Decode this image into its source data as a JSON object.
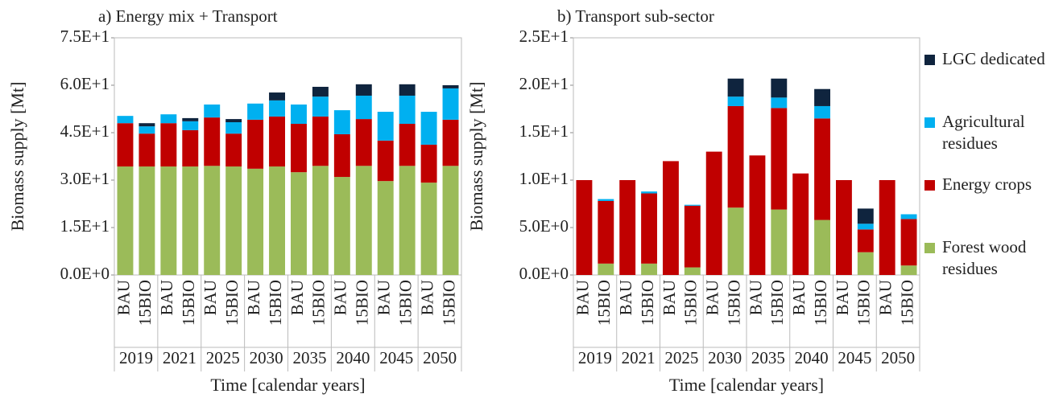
{
  "chart_data": [
    {
      "type": "bar",
      "stacked": true,
      "title": "a) Energy mix + Transport",
      "y_label": "Biomass supply  [Mt]",
      "x_label": "Time [calendar years]",
      "categories": [
        "BAU",
        "15BIO",
        "BAU",
        "15BIO",
        "BAU",
        "15BIO",
        "BAU",
        "15BIO",
        "BAU",
        "15BIO",
        "BAU",
        "15BIO",
        "BAU",
        "15BIO",
        "BAU",
        "15BIO"
      ],
      "groups": [
        "2019",
        "2021",
        "2025",
        "2030",
        "2035",
        "2040",
        "2045",
        "2050"
      ],
      "ylim": [
        0,
        75
      ],
      "yticks": [
        {
          "value": 0,
          "label": "0.0E+0"
        },
        {
          "value": 15,
          "label": "1.5E+1"
        },
        {
          "value": 30,
          "label": "3.0E+1"
        },
        {
          "value": 45,
          "label": "4.5E+1"
        },
        {
          "value": 60,
          "label": "6.0E+1"
        },
        {
          "value": 75,
          "label": "7.5E+1"
        }
      ],
      "series": [
        {
          "color": "#9bbb59",
          "values": [
            34.3,
            34.3,
            34.3,
            34.3,
            34.5,
            34.3,
            33.6,
            34.3,
            32.5,
            34.5,
            31.0,
            34.5,
            29.7,
            34.5,
            29.2,
            34.5
          ]
        },
        {
          "color": "#c00000",
          "values": [
            13.7,
            10.4,
            13.7,
            11.5,
            15.3,
            10.4,
            15.5,
            15.8,
            15.3,
            15.6,
            13.5,
            14.8,
            12.8,
            13.3,
            12.0,
            14.6
          ]
        },
        {
          "color": "#00b0f0",
          "values": [
            2.3,
            2.3,
            2.8,
            2.8,
            4.1,
            3.6,
            5.1,
            5.1,
            6.1,
            6.3,
            7.6,
            7.4,
            9.1,
            8.9,
            10.4,
            9.9
          ]
        },
        {
          "color": "#0f243e",
          "values": [
            0,
            1.0,
            0,
            1.0,
            0,
            1.0,
            0,
            2.5,
            0,
            3.1,
            0,
            3.6,
            0,
            3.6,
            0,
            1.0
          ]
        }
      ]
    },
    {
      "type": "bar",
      "stacked": true,
      "title": "b) Transport sub-sector",
      "y_label": "Biomass supply [Mt]",
      "x_label": "Time [calendar years]",
      "categories": [
        "BAU",
        "15BIO",
        "BAU",
        "15BIO",
        "BAU",
        "15BIO",
        "BAU",
        "15BIO",
        "BAU",
        "15BIO",
        "BAU",
        "15BIO",
        "BAU",
        "15BIO",
        "BAU",
        "15BIO"
      ],
      "groups": [
        "2019",
        "2021",
        "2025",
        "2030",
        "2035",
        "2040",
        "2045",
        "2050"
      ],
      "ylim": [
        0,
        25
      ],
      "yticks": [
        {
          "value": 0,
          "label": "0.0E+0"
        },
        {
          "value": 5,
          "label": "5.0E+0"
        },
        {
          "value": 10,
          "label": "1.0E+1"
        },
        {
          "value": 15,
          "label": "1.5E+1"
        },
        {
          "value": 20,
          "label": "2.0E+1"
        },
        {
          "value": 25,
          "label": "2.5E+1"
        }
      ],
      "series": [
        {
          "name": "Forest wood residues",
          "color": "#9bbb59",
          "values": [
            0,
            1.2,
            0,
            1.2,
            0,
            0.8,
            0,
            7.1,
            0,
            6.9,
            0,
            5.8,
            0,
            2.4,
            0,
            1.0
          ]
        },
        {
          "name": "Energy crops",
          "color": "#c00000",
          "values": [
            10.0,
            6.6,
            10.0,
            7.4,
            12.0,
            6.5,
            13.0,
            10.7,
            12.6,
            10.7,
            10.7,
            10.7,
            10.0,
            2.4,
            10.0,
            4.9
          ]
        },
        {
          "name": "Agricultural residues",
          "color": "#00b0f0",
          "values": [
            0,
            0.2,
            0,
            0.2,
            0,
            0.1,
            0,
            1.0,
            0,
            1.1,
            0,
            1.3,
            0,
            0.6,
            0,
            0.5
          ]
        },
        {
          "name": "LGC dedicated",
          "color": "#0f243e",
          "values": [
            0,
            0,
            0,
            0,
            0,
            0,
            0,
            1.9,
            0,
            2.0,
            0,
            1.8,
            0,
            1.6,
            0,
            0
          ]
        }
      ]
    }
  ]
}
